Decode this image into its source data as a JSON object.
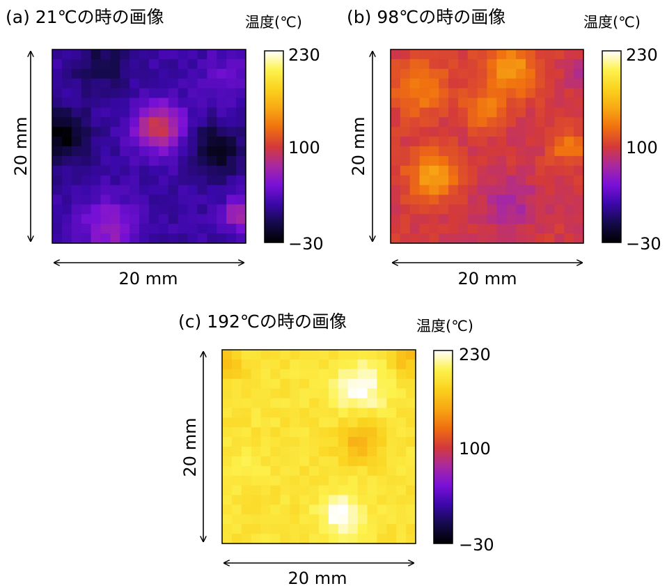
{
  "colors": {
    "colormap": [
      "#000000",
      "#140a4a",
      "#3a08a8",
      "#7a10d8",
      "#a829a0",
      "#d43a3a",
      "#f07010",
      "#f8a814",
      "#fad21e",
      "#fdf24e",
      "#ffffff"
    ],
    "frame": "#000000",
    "arrow": "#000000"
  },
  "chart_data": [
    {
      "type": "heatmap",
      "title": "(a) 21℃の時の画像",
      "colorbar_label": "温度(℃)",
      "colorbar_ticks": [
        "230",
        "100",
        "−30"
      ],
      "zlim": [
        -30,
        230
      ],
      "xlabel": "20 mm",
      "ylabel": "20 mm",
      "mean_temperature": 21,
      "grid_size": [
        20,
        20
      ],
      "blobs": [
        {
          "cx": 0.55,
          "cy": 0.4,
          "sigma": 0.09,
          "value": 95
        },
        {
          "cx": 0.3,
          "cy": 0.92,
          "sigma": 0.1,
          "value": 65
        },
        {
          "cx": 0.97,
          "cy": 0.85,
          "sigma": 0.06,
          "value": 75
        },
        {
          "cx": 0.9,
          "cy": 0.15,
          "sigma": 0.1,
          "value": 40
        },
        {
          "cx": 0.05,
          "cy": 0.45,
          "sigma": 0.1,
          "value": -25
        },
        {
          "cx": 0.85,
          "cy": 0.52,
          "sigma": 0.09,
          "value": -20
        },
        {
          "cx": 0.25,
          "cy": 0.08,
          "sigma": 0.1,
          "value": -5
        }
      ]
    },
    {
      "type": "heatmap",
      "title": "(b) 98℃の時の画像",
      "colorbar_label": "温度(℃)",
      "colorbar_ticks": [
        "230",
        "100",
        "−30"
      ],
      "zlim": [
        -30,
        230
      ],
      "xlabel": "20 mm",
      "ylabel": "20 mm",
      "mean_temperature": 98,
      "grid_size": [
        20,
        20
      ],
      "blobs": [
        {
          "cx": 0.22,
          "cy": 0.65,
          "sigma": 0.09,
          "value": 150
        },
        {
          "cx": 0.62,
          "cy": 0.1,
          "sigma": 0.1,
          "value": 145
        },
        {
          "cx": 0.15,
          "cy": 0.2,
          "sigma": 0.1,
          "value": 135
        },
        {
          "cx": 0.48,
          "cy": 0.3,
          "sigma": 0.07,
          "value": 135
        },
        {
          "cx": 0.92,
          "cy": 0.5,
          "sigma": 0.06,
          "value": 135
        },
        {
          "cx": 0.62,
          "cy": 0.8,
          "sigma": 0.1,
          "value": 75
        },
        {
          "cx": 0.98,
          "cy": 0.12,
          "sigma": 0.05,
          "value": 80
        }
      ]
    },
    {
      "type": "heatmap",
      "title": "(c) 192℃の時の画像",
      "colorbar_label": "温度(℃)",
      "colorbar_ticks": [
        "230",
        "100",
        "−30"
      ],
      "zlim": [
        -30,
        230
      ],
      "xlabel": "20 mm",
      "ylabel": "20 mm",
      "mean_temperature": 192,
      "grid_size": [
        20,
        20
      ],
      "blobs": [
        {
          "cx": 0.72,
          "cy": 0.2,
          "sigma": 0.1,
          "value": 228
        },
        {
          "cx": 0.62,
          "cy": 0.85,
          "sigma": 0.08,
          "value": 230
        },
        {
          "cx": 0.72,
          "cy": 0.47,
          "sigma": 0.08,
          "value": 160
        },
        {
          "cx": 0.95,
          "cy": 0.05,
          "sigma": 0.06,
          "value": 165
        },
        {
          "cx": 0.03,
          "cy": 0.06,
          "sigma": 0.06,
          "value": 170
        },
        {
          "cx": 0.12,
          "cy": 0.6,
          "sigma": 0.08,
          "value": 200
        }
      ]
    }
  ]
}
